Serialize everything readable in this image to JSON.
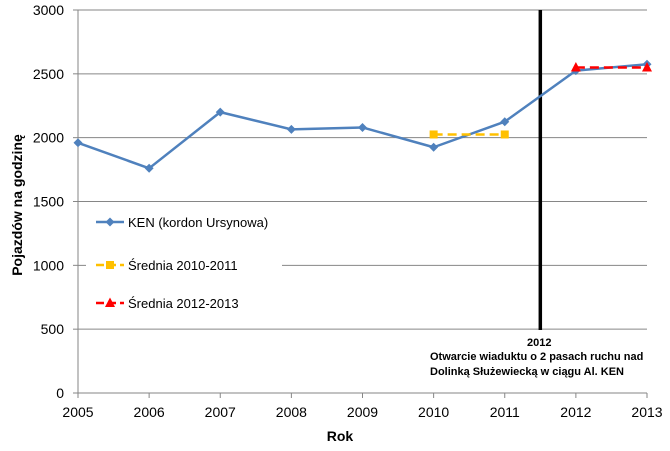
{
  "chart_data": {
    "type": "line",
    "title": "",
    "xlabel": "Rok",
    "ylabel": "Pojazdów na godzinę",
    "x": [
      2005,
      2006,
      2007,
      2008,
      2009,
      2010,
      2011,
      2012,
      2013
    ],
    "xlim": [
      2005,
      2013
    ],
    "ylim": [
      0,
      3000
    ],
    "yticks": [
      0,
      500,
      1000,
      1500,
      2000,
      2500,
      3000
    ],
    "xticks": [
      2005,
      2006,
      2007,
      2008,
      2009,
      2010,
      2011,
      2012,
      2013
    ],
    "grid": "horizontal",
    "legend_position": "left",
    "series": [
      {
        "name": "KEN (kordon Ursynowa)",
        "color": "#4f81bd",
        "marker": "diamond",
        "line_style": "solid",
        "points": [
          {
            "x": 2005,
            "y": 1960
          },
          {
            "x": 2006,
            "y": 1760
          },
          {
            "x": 2007,
            "y": 2200
          },
          {
            "x": 2008,
            "y": 2065
          },
          {
            "x": 2009,
            "y": 2080
          },
          {
            "x": 2010,
            "y": 1925
          },
          {
            "x": 2011,
            "y": 2125
          },
          {
            "x": 2012,
            "y": 2525
          },
          {
            "x": 2013,
            "y": 2575
          }
        ]
      },
      {
        "name": "Średnia 2010-2011",
        "color": "#ffc000",
        "marker": "square",
        "line_style": "dashed",
        "points": [
          {
            "x": 2010,
            "y": 2025
          },
          {
            "x": 2011,
            "y": 2025
          }
        ]
      },
      {
        "name": "Średnia 2012-2013",
        "color": "#ff0000",
        "marker": "triangle",
        "line_style": "dashed",
        "points": [
          {
            "x": 2012,
            "y": 2550
          },
          {
            "x": 2013,
            "y": 2550
          }
        ]
      }
    ],
    "vertical_marker": {
      "x": 2011.5,
      "color": "#000000",
      "annotation": {
        "line1": "2012",
        "line2": "Otwarcie wiaduktu o 2 pasach ruchu nad",
        "line3": "Dolinką Służewiecką w ciągu Al. KEN"
      }
    }
  }
}
